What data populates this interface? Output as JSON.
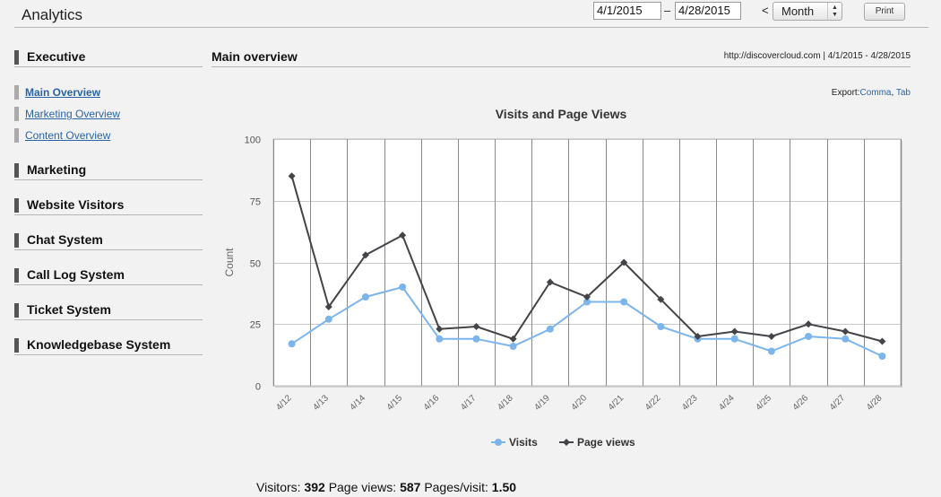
{
  "header": {
    "title": "Analytics",
    "date_from": "4/1/2015",
    "date_separator": "–",
    "date_to": "4/28/2015",
    "prev_arrow": "<",
    "period": "Month",
    "print_label": "Print"
  },
  "sidebar": {
    "sections": [
      {
        "label": "Executive",
        "items": [
          "Main Overview",
          "Marketing Overview",
          "Content Overview"
        ]
      },
      {
        "label": "Marketing"
      },
      {
        "label": "Website Visitors"
      },
      {
        "label": "Chat System"
      },
      {
        "label": "Call Log System"
      },
      {
        "label": "Ticket System"
      },
      {
        "label": "Knowledgebase System"
      }
    ],
    "active_item": "Main Overview"
  },
  "main": {
    "title": "Main overview",
    "meta": "http://discovercloud.com | 4/1/2015 - 4/28/2015",
    "export_label": "Export:",
    "export_comma": "Comma",
    "export_sep": ",",
    "export_tab": "Tab"
  },
  "colors": {
    "visits": "#7cb5ec",
    "page_views": "#434348",
    "grid": "#c8c8c8",
    "link": "#2a64a8"
  },
  "chart_data": {
    "type": "line",
    "title": "Visits and Page Views",
    "ylabel": "Count",
    "xlabel": "",
    "ylim": [
      0,
      100
    ],
    "yticks": [
      0,
      25,
      50,
      75,
      100
    ],
    "grid": true,
    "legend_position": "bottom-center",
    "categories": [
      "4/12",
      "4/13",
      "4/14",
      "4/15",
      "4/16",
      "4/17",
      "4/18",
      "4/19",
      "4/20",
      "4/21",
      "4/22",
      "4/23",
      "4/24",
      "4/25",
      "4/26",
      "4/27",
      "4/28"
    ],
    "series": [
      {
        "name": "Visits",
        "marker": "circle",
        "values": [
          17,
          27,
          36,
          40,
          19,
          19,
          16,
          23,
          34,
          34,
          24,
          19,
          19,
          14,
          20,
          19,
          12
        ]
      },
      {
        "name": "Page views",
        "marker": "diamond",
        "values": [
          85,
          32,
          53,
          61,
          23,
          24,
          19,
          42,
          36,
          50,
          35,
          20,
          22,
          20,
          25,
          22,
          18
        ]
      }
    ]
  },
  "summary": {
    "visitors_label": "Visitors:",
    "visitors": "392",
    "page_views_label": "Page views:",
    "page_views": "587",
    "pages_per_visit_label": "Pages/visit:",
    "pages_per_visit": "1.50"
  }
}
